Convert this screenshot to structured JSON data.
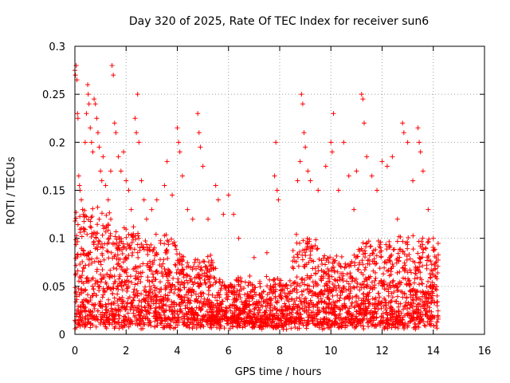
{
  "chart_data": {
    "type": "scatter",
    "title": "Day 320 of 2025, Rate Of TEC Index for receiver sun6",
    "xlabel": "GPS time / hours",
    "ylabel": "ROTI / TECUs",
    "xlim": [
      0,
      16
    ],
    "ylim": [
      0,
      0.3
    ],
    "x_ticks": [
      0,
      2,
      4,
      6,
      8,
      10,
      12,
      14,
      16
    ],
    "x_tick_labels": [
      "0",
      "2",
      "4",
      "6",
      "8",
      "10",
      "12",
      "14",
      "16"
    ],
    "y_ticks": [
      0,
      0.05,
      0.1,
      0.15,
      0.2,
      0.25,
      0.3
    ],
    "y_tick_labels": [
      "0",
      "0.05",
      "0.1",
      "0.15",
      "0.2",
      "0.25",
      "0.3"
    ],
    "grid": true,
    "marker": "+",
    "color": "#ff0000",
    "series": [
      {
        "name": "ROTI",
        "x_range": [
          0,
          14.2
        ],
        "points": [
          [
            0.0,
            0.275
          ],
          [
            0.02,
            0.27
          ],
          [
            0.05,
            0.28
          ],
          [
            0.08,
            0.265
          ],
          [
            0.1,
            0.23
          ],
          [
            0.12,
            0.225
          ],
          [
            0.15,
            0.165
          ],
          [
            0.18,
            0.155
          ],
          [
            0.2,
            0.15
          ],
          [
            0.25,
            0.14
          ],
          [
            0.3,
            0.13
          ],
          [
            0.35,
            0.11
          ],
          [
            0.4,
            0.2
          ],
          [
            0.45,
            0.23
          ],
          [
            0.5,
            0.26
          ],
          [
            0.52,
            0.25
          ],
          [
            0.55,
            0.24
          ],
          [
            0.6,
            0.215
          ],
          [
            0.65,
            0.2
          ],
          [
            0.7,
            0.19
          ],
          [
            0.75,
            0.245
          ],
          [
            0.8,
            0.24
          ],
          [
            0.85,
            0.225
          ],
          [
            0.9,
            0.21
          ],
          [
            0.95,
            0.195
          ],
          [
            1.0,
            0.17
          ],
          [
            1.05,
            0.16
          ],
          [
            1.1,
            0.185
          ],
          [
            1.2,
            0.155
          ],
          [
            1.3,
            0.14
          ],
          [
            1.4,
            0.17
          ],
          [
            1.45,
            0.28
          ],
          [
            1.5,
            0.27
          ],
          [
            1.55,
            0.22
          ],
          [
            1.6,
            0.21
          ],
          [
            1.7,
            0.185
          ],
          [
            1.8,
            0.17
          ],
          [
            1.9,
            0.19
          ],
          [
            2.0,
            0.16
          ],
          [
            2.1,
            0.15
          ],
          [
            2.2,
            0.13
          ],
          [
            2.35,
            0.225
          ],
          [
            2.4,
            0.21
          ],
          [
            2.45,
            0.25
          ],
          [
            2.5,
            0.2
          ],
          [
            2.6,
            0.16
          ],
          [
            2.7,
            0.14
          ],
          [
            2.8,
            0.12
          ],
          [
            3.0,
            0.13
          ],
          [
            3.2,
            0.14
          ],
          [
            3.5,
            0.155
          ],
          [
            3.6,
            0.18
          ],
          [
            3.8,
            0.145
          ],
          [
            4.0,
            0.215
          ],
          [
            4.05,
            0.2
          ],
          [
            4.1,
            0.19
          ],
          [
            4.2,
            0.165
          ],
          [
            4.4,
            0.13
          ],
          [
            4.6,
            0.12
          ],
          [
            4.8,
            0.23
          ],
          [
            4.85,
            0.21
          ],
          [
            4.9,
            0.195
          ],
          [
            5.0,
            0.175
          ],
          [
            5.2,
            0.12
          ],
          [
            5.5,
            0.155
          ],
          [
            5.6,
            0.14
          ],
          [
            5.8,
            0.125
          ],
          [
            6.0,
            0.145
          ],
          [
            6.2,
            0.125
          ],
          [
            6.4,
            0.1
          ],
          [
            7.0,
            0.08
          ],
          [
            7.5,
            0.085
          ],
          [
            7.85,
            0.2
          ],
          [
            7.8,
            0.165
          ],
          [
            7.9,
            0.15
          ],
          [
            7.95,
            0.14
          ],
          [
            8.5,
            0.07
          ],
          [
            8.7,
            0.16
          ],
          [
            8.8,
            0.18
          ],
          [
            8.85,
            0.25
          ],
          [
            8.9,
            0.24
          ],
          [
            8.95,
            0.21
          ],
          [
            9.0,
            0.195
          ],
          [
            9.1,
            0.17
          ],
          [
            9.2,
            0.16
          ],
          [
            9.5,
            0.15
          ],
          [
            9.8,
            0.175
          ],
          [
            10.0,
            0.2
          ],
          [
            10.05,
            0.19
          ],
          [
            10.1,
            0.23
          ],
          [
            10.3,
            0.15
          ],
          [
            10.5,
            0.2
          ],
          [
            10.7,
            0.165
          ],
          [
            10.9,
            0.13
          ],
          [
            11.0,
            0.17
          ],
          [
            11.2,
            0.25
          ],
          [
            11.25,
            0.245
          ],
          [
            11.3,
            0.22
          ],
          [
            11.4,
            0.185
          ],
          [
            11.6,
            0.165
          ],
          [
            11.8,
            0.15
          ],
          [
            12.0,
            0.18
          ],
          [
            12.2,
            0.175
          ],
          [
            12.4,
            0.185
          ],
          [
            12.6,
            0.12
          ],
          [
            12.8,
            0.22
          ],
          [
            12.85,
            0.21
          ],
          [
            13.0,
            0.2
          ],
          [
            13.2,
            0.16
          ],
          [
            13.4,
            0.215
          ],
          [
            13.45,
            0.2
          ],
          [
            13.5,
            0.19
          ],
          [
            13.6,
            0.17
          ],
          [
            13.8,
            0.13
          ],
          [
            14.0,
            0.1
          ],
          [
            14.1,
            0.06
          ],
          [
            14.15,
            0.04
          ]
        ]
      }
    ]
  }
}
